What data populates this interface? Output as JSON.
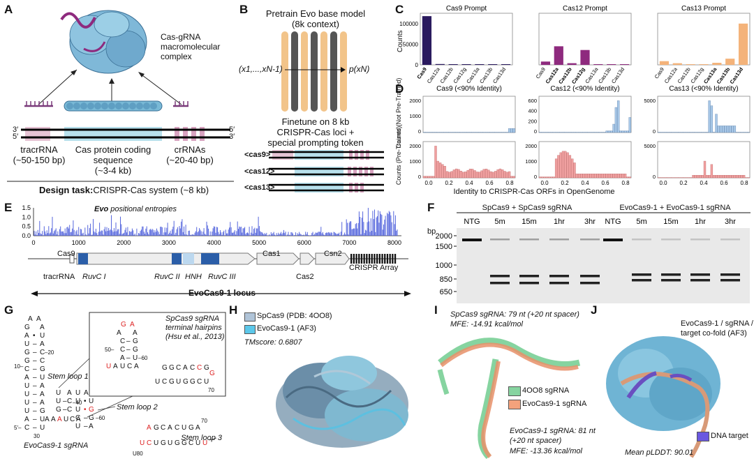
{
  "panels": [
    "A",
    "B",
    "C",
    "D",
    "E",
    "F",
    "G",
    "H",
    "I",
    "J"
  ],
  "colors": {
    "cas9": "#2a1a5e",
    "cas12": "#8e2a7e",
    "cas13": "#f4b37a",
    "blue": "#a8c8e8",
    "red": "#f0a0a0",
    "cas_blue": "#9ccfe0",
    "rna_pink": "#c59ab0",
    "entropy": "#5566dd"
  },
  "panel_a": {
    "complex_label": "Cas-gRNA macromolecular complex",
    "tracr_label": "tracrRNA",
    "tracr_len": "(~50-150 bp)",
    "cas_label": "Cas protein coding sequence",
    "cas_len": "(~3-4 kb)",
    "crrna_label": "crRNAs",
    "crrna_len": "(~20-40 bp)",
    "prime3": "3′",
    "prime5": "5′",
    "design_task_label": "Design task:",
    "design_task_value": "CRISPR-Cas system (~8 kb)"
  },
  "panel_b": {
    "title1": "Pretrain Evo base model",
    "title2": "(8k context)",
    "input": "(x1,...,xN-1)",
    "output": "p(xN)",
    "ft1": "Finetune on 8 kb",
    "ft2": "CRISPR-Cas loci +",
    "ft3": "special prompting token",
    "tokens": [
      "<cas9>",
      "<cas12>",
      "<cas13>"
    ]
  },
  "panel_c": {
    "ylabel": "Counts",
    "y_ticks": [
      "100000",
      "50000",
      "0"
    ],
    "categories": [
      "Cas9",
      "Cas12a",
      "Cas12b",
      "Cas12g",
      "Cas13a",
      "Cas13b",
      "Cas13d"
    ],
    "charts": [
      {
        "title": "Cas9 Prompt",
        "values": [
          118000,
          2000,
          800,
          600,
          400,
          400,
          300
        ],
        "bold": [
          0
        ],
        "color": "#2a1a5e"
      },
      {
        "title": "Cas12 Prompt",
        "values": [
          8000,
          45000,
          4000,
          36000,
          500,
          500,
          400
        ],
        "bold": [
          1,
          2,
          3
        ],
        "color": "#8e2a7e"
      },
      {
        "title": "Cas13 Prompt",
        "values": [
          9000,
          4000,
          1500,
          1200,
          5000,
          15000,
          100000
        ],
        "bold": [
          4,
          5,
          6
        ],
        "color": "#f4b37a"
      }
    ]
  },
  "panel_d": {
    "titles": [
      "Cas9 (<90% Identity)",
      "Cas12 (<90% Identity)",
      "Cas13 (<90% Identity)"
    ],
    "ylabel_top": "Counts (Not Pre-Trained)",
    "ylabel_bottom": "Counts (Pre-Trained)",
    "xlabel": "Identity to CRISPR-Cas ORFs in OpenGenome",
    "x_ticks": [
      "0.0",
      "0.2",
      "0.4",
      "0.6",
      "0.8"
    ],
    "yticks_top": [
      [
        "2000",
        "1000",
        "0"
      ],
      [
        "600",
        "400",
        "200",
        "0"
      ],
      [
        "5000",
        "0"
      ]
    ],
    "yticks_bottom": [
      [
        "2000",
        "1000",
        "0"
      ],
      [
        "2000",
        "1000",
        "0"
      ],
      [
        "5000",
        "0"
      ]
    ]
  },
  "panel_e": {
    "title": "Evo positional entropies",
    "title_bold": "Evo",
    "y_ticks": [
      "1.5",
      "1.0",
      "0.5",
      "0.0"
    ],
    "x_ticks": [
      "0",
      "1000",
      "2000",
      "3000",
      "4000",
      "5000",
      "6000",
      "7000",
      "8000"
    ],
    "genes": [
      "Cas9",
      "Cas1",
      "Csn2"
    ],
    "labels": {
      "tracr": "tracrRNA",
      "ruvc1": "RuvC I",
      "ruvc2": "RuvC II",
      "hnh": "HNH",
      "ruvc3": "RuvC III",
      "cas2": "Cas2",
      "array": "CRISPR Array"
    },
    "locus": "EvoCas9-1 locus"
  },
  "panel_f": {
    "group1": "SpCas9 + SpCas9 sgRNA",
    "group2": "EvoCas9-1 + EvoCas9-1 sgRNA",
    "lanes": [
      "NTG",
      "5m",
      "15m",
      "1hr",
      "3hr",
      "NTG",
      "5m",
      "15m",
      "1hr",
      "3hr"
    ],
    "bp_label": "bp",
    "bp_ticks": [
      "2000",
      "1500",
      "1000",
      "850",
      "650"
    ]
  },
  "panel_g": {
    "inset_title1": "SpCas9 sgRNA",
    "inset_title2": "terminal hairpins",
    "inset_title3": "(Hsu et al., 2013)",
    "stem1": "Stem loop 1",
    "stem2": "Stem loop 2",
    "stem3": "Stem loop 3",
    "name": "EvoCas9-1 sgRNA"
  },
  "panel_h": {
    "legend": [
      "SpCas9 (PDB: 4OO8)",
      "EvoCas9-1 (AF3)"
    ],
    "tm": "TMscore: 0.6807"
  },
  "panel_i": {
    "top1": "SpCas9 sgRNA: 79 nt (+20 nt spacer)",
    "top2": "MFE: -14.91 kcal/mol",
    "legend": [
      "4OO8 sgRNA",
      "EvoCas9-1 sgRNA"
    ],
    "bot1": "EvoCas9-1 sgRNA: 81 nt",
    "bot2": "(+20 nt spacer)",
    "bot3": "MFE: -13.36 kcal/mol"
  },
  "panel_j": {
    "title1": "EvoCas9-1 / sgRNA /",
    "title2": "target co-fold (AF3)",
    "legend": "DNA target",
    "plddt": "Mean pLDDT: 90.01"
  }
}
